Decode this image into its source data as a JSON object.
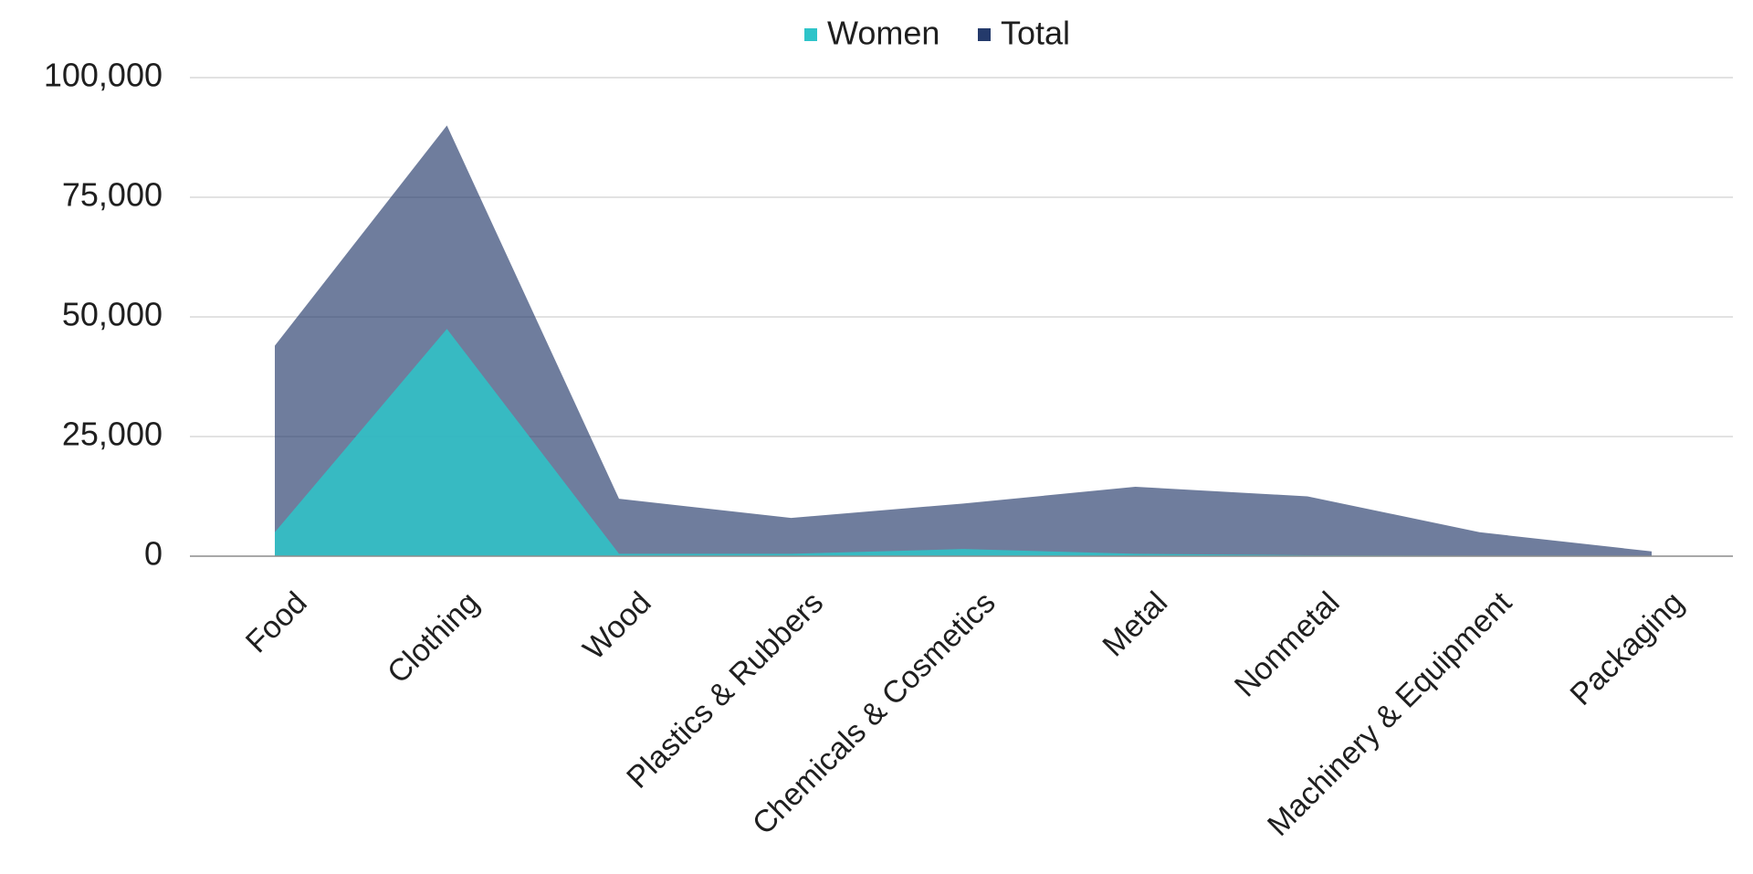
{
  "chart_data": {
    "type": "area",
    "categories": [
      "Food",
      "Clothing",
      "Wood",
      "Plastics & Rubbers",
      "Chemicals & Cosmetics",
      "Metal",
      "Nonmetal",
      "Machinery & Equipment",
      "Packaging"
    ],
    "series": [
      {
        "name": "Total",
        "color": "#243a6b",
        "values": [
          44000,
          90000,
          12000,
          8000,
          11000,
          14500,
          12500,
          5000,
          1000
        ]
      },
      {
        "name": "Women",
        "color": "#2ec4c9",
        "values": [
          5000,
          47500,
          500,
          500,
          1500,
          500,
          200,
          100,
          100
        ]
      }
    ],
    "title": "",
    "xlabel": "",
    "ylabel": "",
    "ylim": [
      0,
      100000
    ],
    "yticks": [
      "0",
      "25,000",
      "50,000",
      "75,000",
      "100,000"
    ],
    "grid": true,
    "legend": {
      "position": "top-center",
      "items": [
        {
          "label": "Women",
          "color": "#2ec4c9"
        },
        {
          "label": "Total",
          "color": "#243a6b"
        }
      ]
    }
  }
}
